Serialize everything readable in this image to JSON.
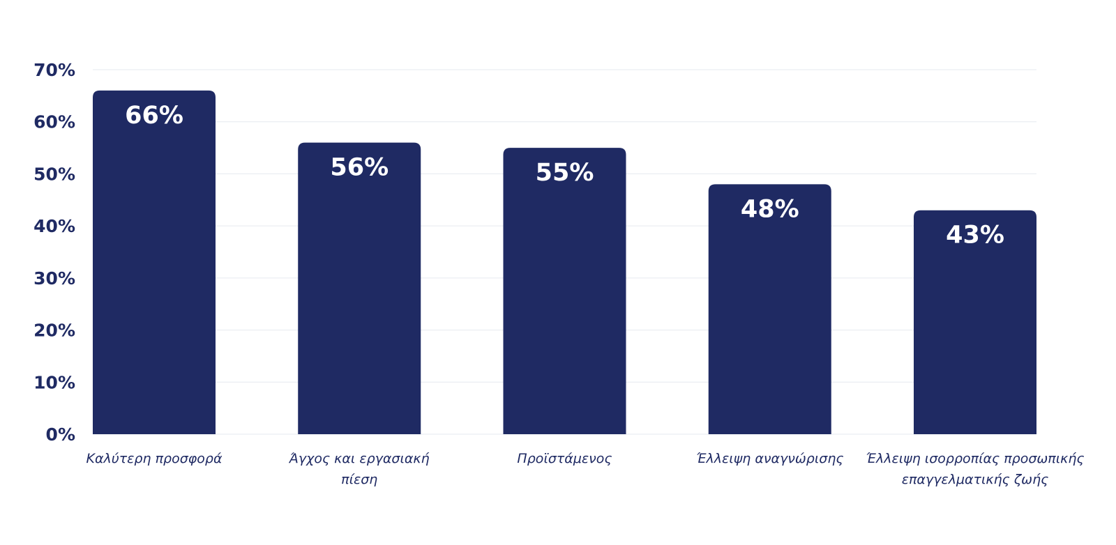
{
  "chart_data": {
    "type": "bar",
    "categories": [
      [
        "Καλύτερη προσφορά"
      ],
      [
        "Άγχος και εργασιακή",
        "πίεση"
      ],
      [
        "Προϊστάμενος"
      ],
      [
        "Έλλειψη αναγνώρισης"
      ],
      [
        "Έλλειψη ισορροπίας προσωπικής",
        "επαγγελματικής ζωής"
      ]
    ],
    "values": [
      66,
      56,
      55,
      48,
      43
    ],
    "data_labels": [
      "66%",
      "56%",
      "55%",
      "48%",
      "43%"
    ],
    "y_ticks": [
      0,
      10,
      20,
      30,
      40,
      50,
      60,
      70
    ],
    "y_tick_labels": [
      "0%",
      "10%",
      "20%",
      "30%",
      "40%",
      "50%",
      "60%",
      "70%"
    ],
    "ylim": [
      0,
      70
    ],
    "grid": true,
    "legend": "none",
    "title": "",
    "xlabel": "",
    "ylabel": "",
    "colors": {
      "bar": "#1f2a63",
      "axis_text": "#1f2a63",
      "data_label": "#ffffff",
      "category_text": "#1f2a63",
      "grid": "#e6e9ef"
    }
  }
}
